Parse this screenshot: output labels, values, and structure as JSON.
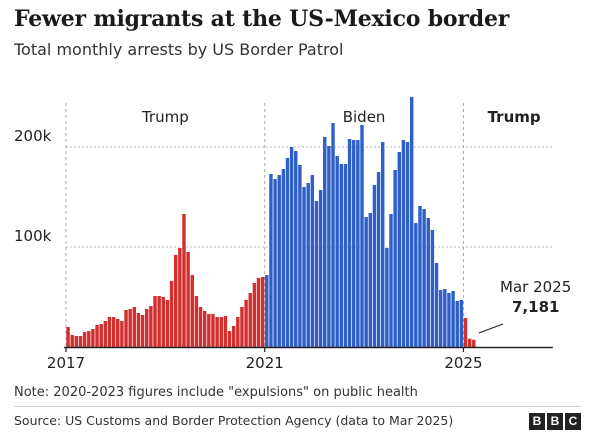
{
  "header": {
    "title": "Fewer migrants at the US-Mexico border",
    "subtitle": "Total monthly arrests by US Border Patrol"
  },
  "footer": {
    "note": "Note: 2020-2023 figures include \"expulsions\" on public health",
    "source": "Source: US Customs and Border Protection Agency (data to Mar 2025)",
    "logo_letters": [
      "B",
      "B",
      "C"
    ]
  },
  "chart_data": {
    "type": "bar",
    "title": "Fewer migrants at the US-Mexico border",
    "subtitle": "Total monthly arrests by US Border Patrol",
    "x_start": "2017-01",
    "x_ticks": [
      "2017",
      "2021",
      "2025"
    ],
    "y_ticks": [
      {
        "value": 100000,
        "label": "100k"
      },
      {
        "value": 200000,
        "label": "200k"
      }
    ],
    "ylim": [
      0,
      250000
    ],
    "xlim_months": 120,
    "colors": {
      "trump": "#d32f2f",
      "biden": "#2f60c8",
      "grid": "#bbbbbb",
      "axis": "#222222"
    },
    "periods": [
      {
        "label": "Trump",
        "start": "2017-01",
        "end": "2021-01",
        "bold": false
      },
      {
        "label": "Biden",
        "start": "2021-01",
        "end": "2025-01",
        "bold": false
      },
      {
        "label": "Trump",
        "start": "2025-01",
        "end": "2027-01",
        "bold": true
      }
    ],
    "annotation": {
      "line1": "Mar 2025",
      "line2": "7,181"
    },
    "series": [
      {
        "party": "trump",
        "start": "2017-01",
        "values": [
          20000,
          12000,
          11000,
          11000,
          15000,
          16000,
          18000,
          22000,
          23000,
          26000,
          30000,
          30000,
          28000,
          26000,
          37000,
          38000,
          40000,
          34000,
          32000,
          38000,
          41000,
          51000,
          51000,
          50000,
          47000,
          66000,
          92000,
          99000,
          133000,
          95000,
          72000,
          51000,
          40000,
          36000,
          33000,
          33000,
          30000,
          30000,
          31000,
          16000,
          21000,
          30000,
          40000,
          47000,
          54000,
          64000,
          69000,
          70000
        ]
      },
      {
        "party": "biden",
        "start": "2021-01",
        "values": [
          72000,
          173000,
          168000,
          172000,
          178000,
          189000,
          200000,
          196000,
          182000,
          160000,
          164000,
          172000,
          146000,
          157000,
          210000,
          201000,
          224000,
          191000,
          183000,
          183000,
          208000,
          207000,
          207000,
          222000,
          130000,
          134000,
          162000,
          175000,
          205000,
          99000,
          133000,
          177000,
          195000,
          207000,
          205000,
          250000,
          124000,
          141000,
          138000,
          129000,
          117000,
          84000,
          57000,
          58000,
          54000,
          56000,
          46000,
          47000
        ]
      },
      {
        "party": "trump",
        "start": "2025-01",
        "values": [
          29000,
          8300,
          7181
        ]
      }
    ]
  }
}
